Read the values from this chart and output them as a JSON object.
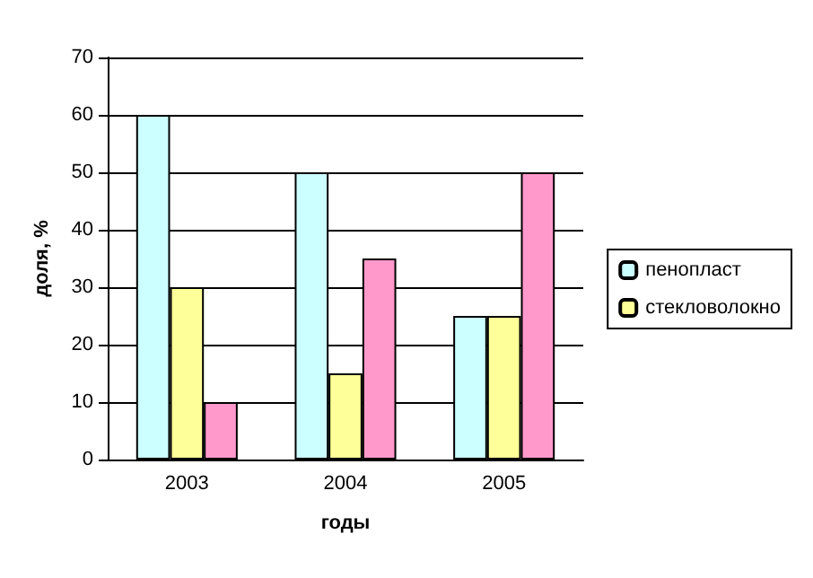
{
  "chart_data": {
    "type": "bar",
    "xlabel": "годы",
    "ylabel": "доля, %",
    "categories": [
      "2003",
      "2004",
      "2005"
    ],
    "series": [
      {
        "name": "пенопласт",
        "color": "#ccffff",
        "values": [
          60,
          50,
          25
        ]
      },
      {
        "name": "стекловолокно",
        "color": "#ffff99",
        "values": [
          30,
          15,
          25
        ]
      },
      {
        "color": "#ff99cc",
        "values": [
          10,
          35,
          50
        ]
      }
    ],
    "ylim": [
      0,
      70
    ],
    "yticks": [
      0,
      10,
      20,
      30,
      40,
      50,
      60,
      70
    ],
    "grid": "y",
    "legend": "right"
  }
}
